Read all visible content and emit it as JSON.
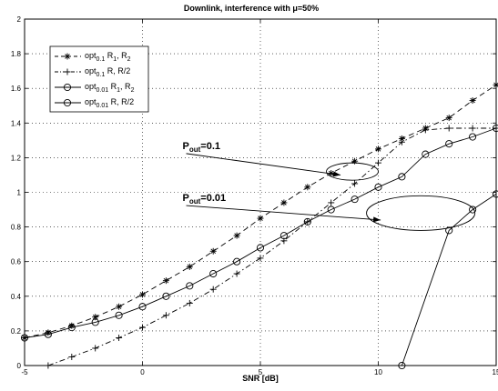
{
  "chart_data": {
    "type": "line",
    "title": "Downlink, interference with μ=50%",
    "xlabel": "SNR [dB]",
    "ylabel": "",
    "xlim": [
      -5,
      15
    ],
    "ylim": [
      0,
      2
    ],
    "grid": true,
    "legend_position": "top-left",
    "x_ticks": [
      -5,
      0,
      5,
      10,
      15
    ],
    "y_ticks": [
      0,
      0.2,
      0.4,
      0.6,
      0.8,
      1,
      1.2,
      1.4,
      1.6,
      1.8,
      2
    ],
    "x_tick_labels": [
      "-5",
      "0",
      "5",
      "10",
      "15"
    ],
    "y_tick_labels": [
      "0",
      "0.2",
      "0.4",
      "0.6",
      "0.8",
      "1",
      "1.2",
      "1.4",
      "1.6",
      "1.8",
      "2"
    ],
    "series": [
      {
        "name": "opt0.1 R1, R2",
        "legend": {
          "base": "opt",
          "sub": "0.1",
          "rest": " R",
          "rest_sub": "1",
          "tail": ", R",
          "tail_sub": "2"
        },
        "marker": "star",
        "line": "dashed",
        "x": [
          -5,
          -4,
          -3,
          -2,
          -1,
          0,
          1,
          2,
          3,
          4,
          5,
          6,
          7,
          8,
          9,
          10,
          11,
          12,
          13,
          14,
          15
        ],
        "y": [
          0.16,
          0.19,
          0.23,
          0.28,
          0.34,
          0.41,
          0.49,
          0.57,
          0.66,
          0.75,
          0.85,
          0.94,
          1.03,
          1.11,
          1.18,
          1.25,
          1.31,
          1.37,
          1.43,
          1.53,
          1.62
        ]
      },
      {
        "name": "opt0.1 R, R/2",
        "legend": {
          "base": "opt",
          "sub": "0.1",
          "rest": " R, R/2",
          "rest_sub": "",
          "tail": "",
          "tail_sub": ""
        },
        "marker": "plus",
        "line": "dashdot",
        "x": [
          -4,
          -3,
          -2,
          -1,
          0,
          1,
          2,
          3,
          4,
          5,
          6,
          7,
          8,
          9,
          10,
          11,
          12,
          13,
          14,
          15
        ],
        "y": [
          0.0,
          0.05,
          0.1,
          0.16,
          0.22,
          0.29,
          0.36,
          0.44,
          0.53,
          0.62,
          0.72,
          0.83,
          0.94,
          1.05,
          1.17,
          1.29,
          1.36,
          1.37,
          1.37,
          1.37
        ]
      },
      {
        "name": "opt0.01 R1, R2",
        "legend": {
          "base": "opt",
          "sub": "0.01",
          "rest": " R",
          "rest_sub": "1",
          "tail": ", R",
          "tail_sub": "2"
        },
        "marker": "circle",
        "line": "solid",
        "x": [
          -5,
          -4,
          -3,
          -2,
          -1,
          0,
          1,
          2,
          3,
          4,
          5,
          6,
          7,
          8,
          9,
          10,
          11,
          12,
          13,
          14,
          15
        ],
        "y": [
          0.16,
          0.18,
          0.22,
          0.25,
          0.29,
          0.34,
          0.4,
          0.46,
          0.53,
          0.6,
          0.68,
          0.75,
          0.83,
          0.9,
          0.96,
          1.03,
          1.09,
          1.22,
          1.28,
          1.32,
          1.37
        ]
      },
      {
        "name": "opt0.01 R, R/2",
        "legend": {
          "base": "opt",
          "sub": "0.01",
          "rest": " R, R/2",
          "rest_sub": "",
          "tail": "",
          "tail_sub": ""
        },
        "marker": "circle",
        "line": "solid",
        "x": [
          11,
          13,
          14,
          15
        ],
        "y": [
          0.0,
          0.78,
          0.9,
          0.99
        ]
      }
    ],
    "annotations": [
      {
        "label_base": "P",
        "label_sub": "out",
        "label_rest": "=0.1",
        "text_x": 1.7,
        "text_y": 1.25,
        "arrow_to_x": 8.4,
        "arrow_to_y": 1.1,
        "ellipse_cx": 8.9,
        "ellipse_cy": 1.12,
        "ellipse_rx": 1.1,
        "ellipse_ry": 0.05
      },
      {
        "label_base": "P",
        "label_sub": "out",
        "label_rest": "=0.01",
        "text_x": 1.7,
        "text_y": 0.95,
        "arrow_to_x": 10.1,
        "arrow_to_y": 0.84,
        "ellipse_cx": 11.8,
        "ellipse_cy": 0.88,
        "ellipse_rx": 2.3,
        "ellipse_ry": 0.1
      }
    ]
  }
}
